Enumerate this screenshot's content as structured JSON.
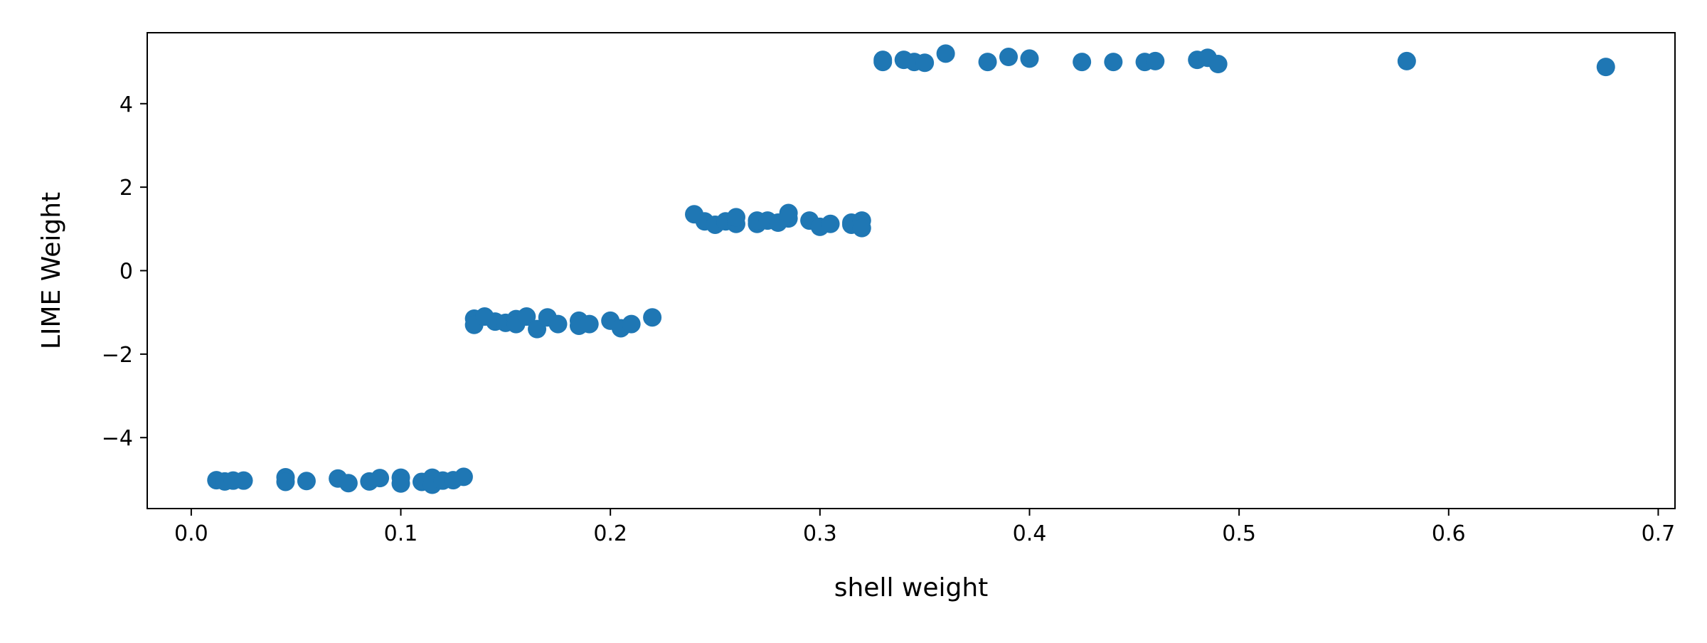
{
  "chart_data": {
    "type": "scatter",
    "title": "",
    "xlabel": "shell weight",
    "ylabel": "LIME Weight",
    "xlim": [
      -0.021,
      0.708
    ],
    "ylim": [
      -5.7,
      5.7
    ],
    "xticks": [
      0.0,
      0.1,
      0.2,
      0.3,
      0.4,
      0.5,
      0.6,
      0.7
    ],
    "xtick_labels": [
      "0.0",
      "0.1",
      "0.2",
      "0.3",
      "0.4",
      "0.5",
      "0.6",
      "0.7"
    ],
    "yticks": [
      -4,
      -2,
      0,
      2,
      4
    ],
    "ytick_labels": [
      "−4",
      "−2",
      "0",
      "2",
      "4"
    ],
    "grid": false,
    "color": "#1f77b4",
    "series": [
      {
        "points": [
          [
            0.012,
            -5.02
          ],
          [
            0.016,
            -5.05
          ],
          [
            0.02,
            -5.03
          ],
          [
            0.025,
            -5.03
          ],
          [
            0.045,
            -4.95
          ],
          [
            0.045,
            -5.06
          ],
          [
            0.055,
            -5.04
          ],
          [
            0.07,
            -4.98
          ],
          [
            0.075,
            -5.09
          ],
          [
            0.085,
            -5.05
          ],
          [
            0.09,
            -4.97
          ],
          [
            0.1,
            -4.96
          ],
          [
            0.1,
            -5.1
          ],
          [
            0.11,
            -5.06
          ],
          [
            0.115,
            -4.96
          ],
          [
            0.115,
            -5.13
          ],
          [
            0.12,
            -5.03
          ],
          [
            0.125,
            -5.02
          ],
          [
            0.13,
            -4.94
          ],
          [
            0.135,
            -1.15
          ],
          [
            0.135,
            -1.3
          ],
          [
            0.14,
            -1.1
          ],
          [
            0.145,
            -1.22
          ],
          [
            0.15,
            -1.25
          ],
          [
            0.155,
            -1.16
          ],
          [
            0.155,
            -1.28
          ],
          [
            0.16,
            -1.1
          ],
          [
            0.165,
            -1.4
          ],
          [
            0.17,
            -1.12
          ],
          [
            0.175,
            -1.28
          ],
          [
            0.185,
            -1.2
          ],
          [
            0.185,
            -1.32
          ],
          [
            0.19,
            -1.28
          ],
          [
            0.2,
            -1.2
          ],
          [
            0.205,
            -1.38
          ],
          [
            0.21,
            -1.28
          ],
          [
            0.22,
            -1.12
          ],
          [
            0.24,
            1.35
          ],
          [
            0.245,
            1.18
          ],
          [
            0.25,
            1.1
          ],
          [
            0.255,
            1.18
          ],
          [
            0.26,
            1.12
          ],
          [
            0.26,
            1.28
          ],
          [
            0.27,
            1.12
          ],
          [
            0.27,
            1.2
          ],
          [
            0.275,
            1.2
          ],
          [
            0.28,
            1.15
          ],
          [
            0.285,
            1.25
          ],
          [
            0.285,
            1.38
          ],
          [
            0.295,
            1.2
          ],
          [
            0.3,
            1.05
          ],
          [
            0.305,
            1.12
          ],
          [
            0.315,
            1.15
          ],
          [
            0.315,
            1.1
          ],
          [
            0.32,
            1.2
          ],
          [
            0.32,
            1.02
          ],
          [
            0.33,
            5.0
          ],
          [
            0.33,
            5.05
          ],
          [
            0.34,
            5.05
          ],
          [
            0.345,
            5.0
          ],
          [
            0.35,
            4.98
          ],
          [
            0.36,
            5.2
          ],
          [
            0.38,
            5.0
          ],
          [
            0.39,
            5.12
          ],
          [
            0.4,
            5.08
          ],
          [
            0.425,
            5.0
          ],
          [
            0.44,
            5.0
          ],
          [
            0.455,
            5.0
          ],
          [
            0.46,
            5.02
          ],
          [
            0.48,
            5.05
          ],
          [
            0.485,
            5.1
          ],
          [
            0.49,
            4.95
          ],
          [
            0.58,
            5.02
          ],
          [
            0.675,
            4.88
          ]
        ]
      }
    ]
  }
}
